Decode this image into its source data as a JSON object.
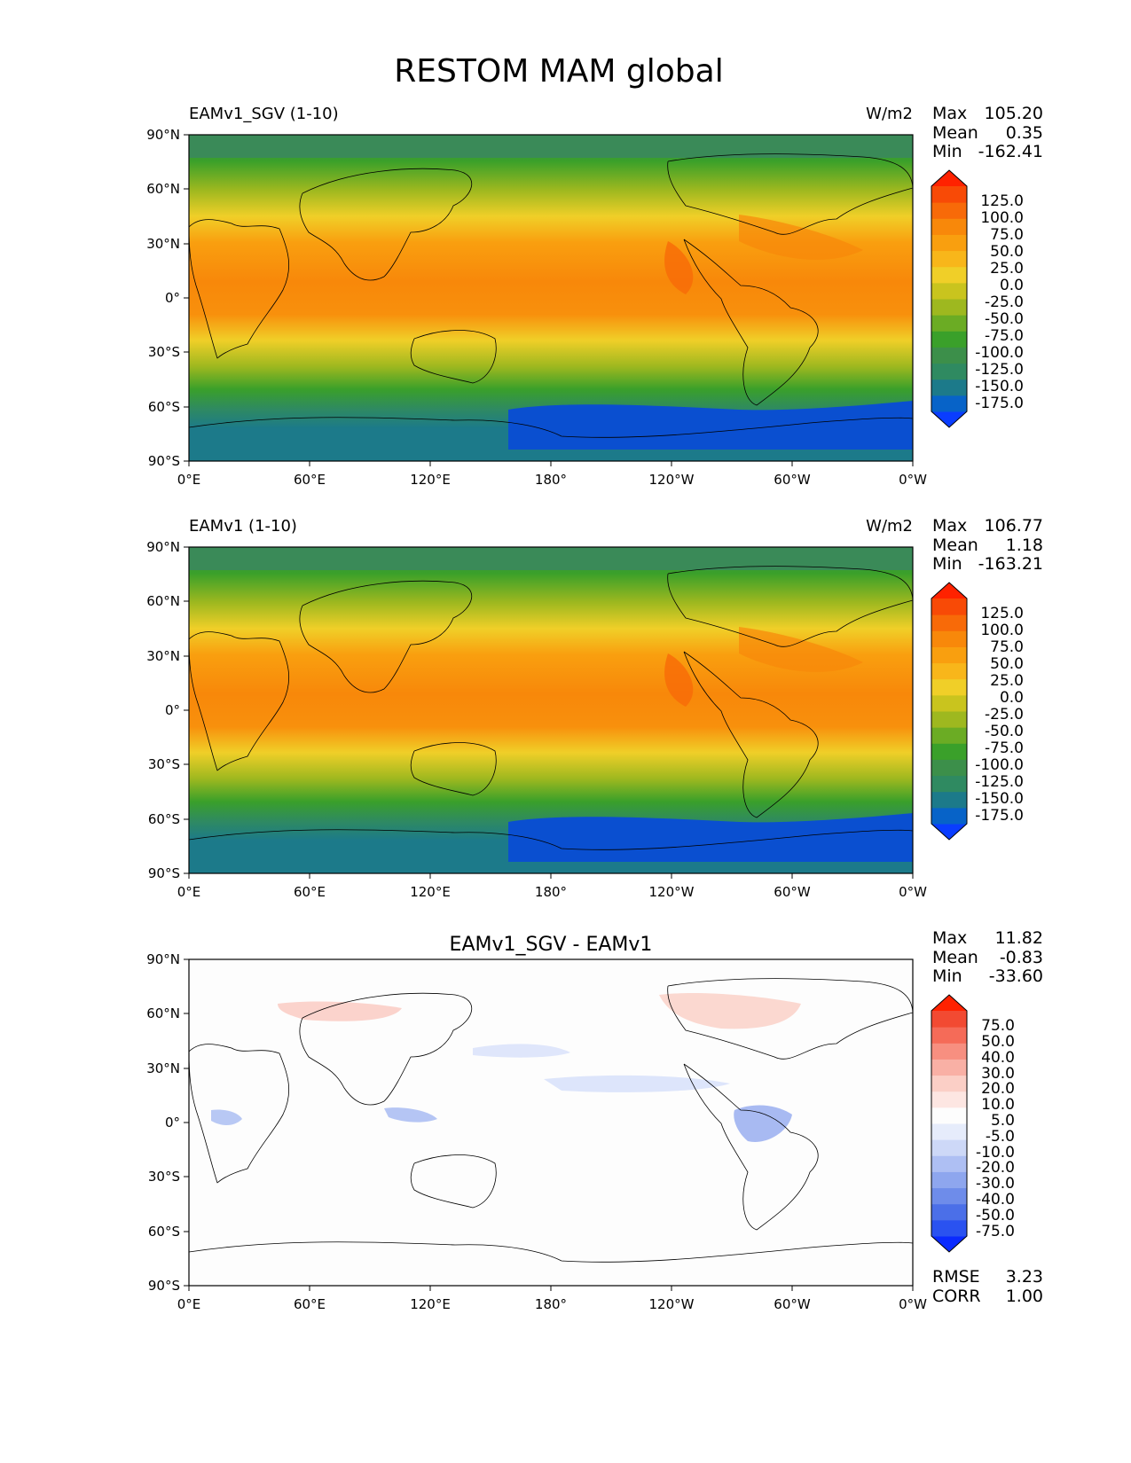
{
  "figure": {
    "title": "RESTOM MAM global"
  },
  "axes": {
    "lat_ticks": [
      "90°N",
      "60°N",
      "30°N",
      "0°",
      "30°S",
      "60°S",
      "90°S"
    ],
    "lon_ticks": [
      "0°E",
      "60°E",
      "120°E",
      "180°",
      "120°W",
      "60°W",
      "0°W"
    ]
  },
  "colors": {
    "test_levels": [
      "#0a3dff",
      "#0763c8",
      "#1c7a8a",
      "#2f8a61",
      "#3c8f4a",
      "#3aa02a",
      "#6bac24",
      "#9eb81f",
      "#c9c41e",
      "#f0cf28",
      "#f8b61a",
      "#f99f0f",
      "#f8880a",
      "#f86a08",
      "#f84a06",
      "#ff2200"
    ],
    "diff_levels": [
      "#0a2aff",
      "#2a52f0",
      "#4b6fe8",
      "#6e8cea",
      "#8ea6ee",
      "#aebff3",
      "#cdd8f7",
      "#e6ecfb",
      "#fdfdfd",
      "#fde6e2",
      "#fbcfc6",
      "#f9b0a5",
      "#f78f80",
      "#f56b58",
      "#f24a32",
      "#ff2200"
    ]
  },
  "chart_data": [
    {
      "type": "heatmap",
      "panel": "test",
      "left_title": "EAMv1_SGV (1-10)",
      "units": "W/m2",
      "stats": [
        {
          "label": "Max",
          "value": "105.20"
        },
        {
          "label": "Mean",
          "value": "0.35"
        },
        {
          "label": "Min",
          "value": "-162.41"
        }
      ],
      "colorbar_labels": [
        "125.0",
        "100.0",
        "75.0",
        "50.0",
        "25.0",
        "0.0",
        "-25.0",
        "-50.0",
        "-75.0",
        "-100.0",
        "-125.0",
        "-150.0",
        "-175.0"
      ],
      "xlim": [
        0,
        360
      ],
      "ylim": [
        -90,
        90
      ]
    },
    {
      "type": "heatmap",
      "panel": "reference",
      "left_title": "EAMv1 (1-10)",
      "units": "W/m2",
      "stats": [
        {
          "label": "Max",
          "value": "106.77"
        },
        {
          "label": "Mean",
          "value": "1.18"
        },
        {
          "label": "Min",
          "value": "-163.21"
        }
      ],
      "colorbar_labels": [
        "125.0",
        "100.0",
        "75.0",
        "50.0",
        "25.0",
        "0.0",
        "-25.0",
        "-50.0",
        "-75.0",
        "-100.0",
        "-125.0",
        "-150.0",
        "-175.0"
      ],
      "xlim": [
        0,
        360
      ],
      "ylim": [
        -90,
        90
      ]
    },
    {
      "type": "heatmap",
      "panel": "difference",
      "center_title": "EAMv1_SGV - EAMv1",
      "stats": [
        {
          "label": "Max",
          "value": "11.82"
        },
        {
          "label": "Mean",
          "value": "-0.83"
        },
        {
          "label": "Min",
          "value": "-33.60"
        }
      ],
      "colorbar_labels": [
        "75.0",
        "50.0",
        "40.0",
        "30.0",
        "20.0",
        "10.0",
        "5.0",
        "-5.0",
        "-10.0",
        "-20.0",
        "-30.0",
        "-40.0",
        "-50.0",
        "-75.0"
      ],
      "metrics": [
        {
          "label": "RMSE",
          "value": "3.23"
        },
        {
          "label": "CORR",
          "value": "1.00"
        }
      ],
      "xlim": [
        0,
        360
      ],
      "ylim": [
        -90,
        90
      ]
    }
  ]
}
